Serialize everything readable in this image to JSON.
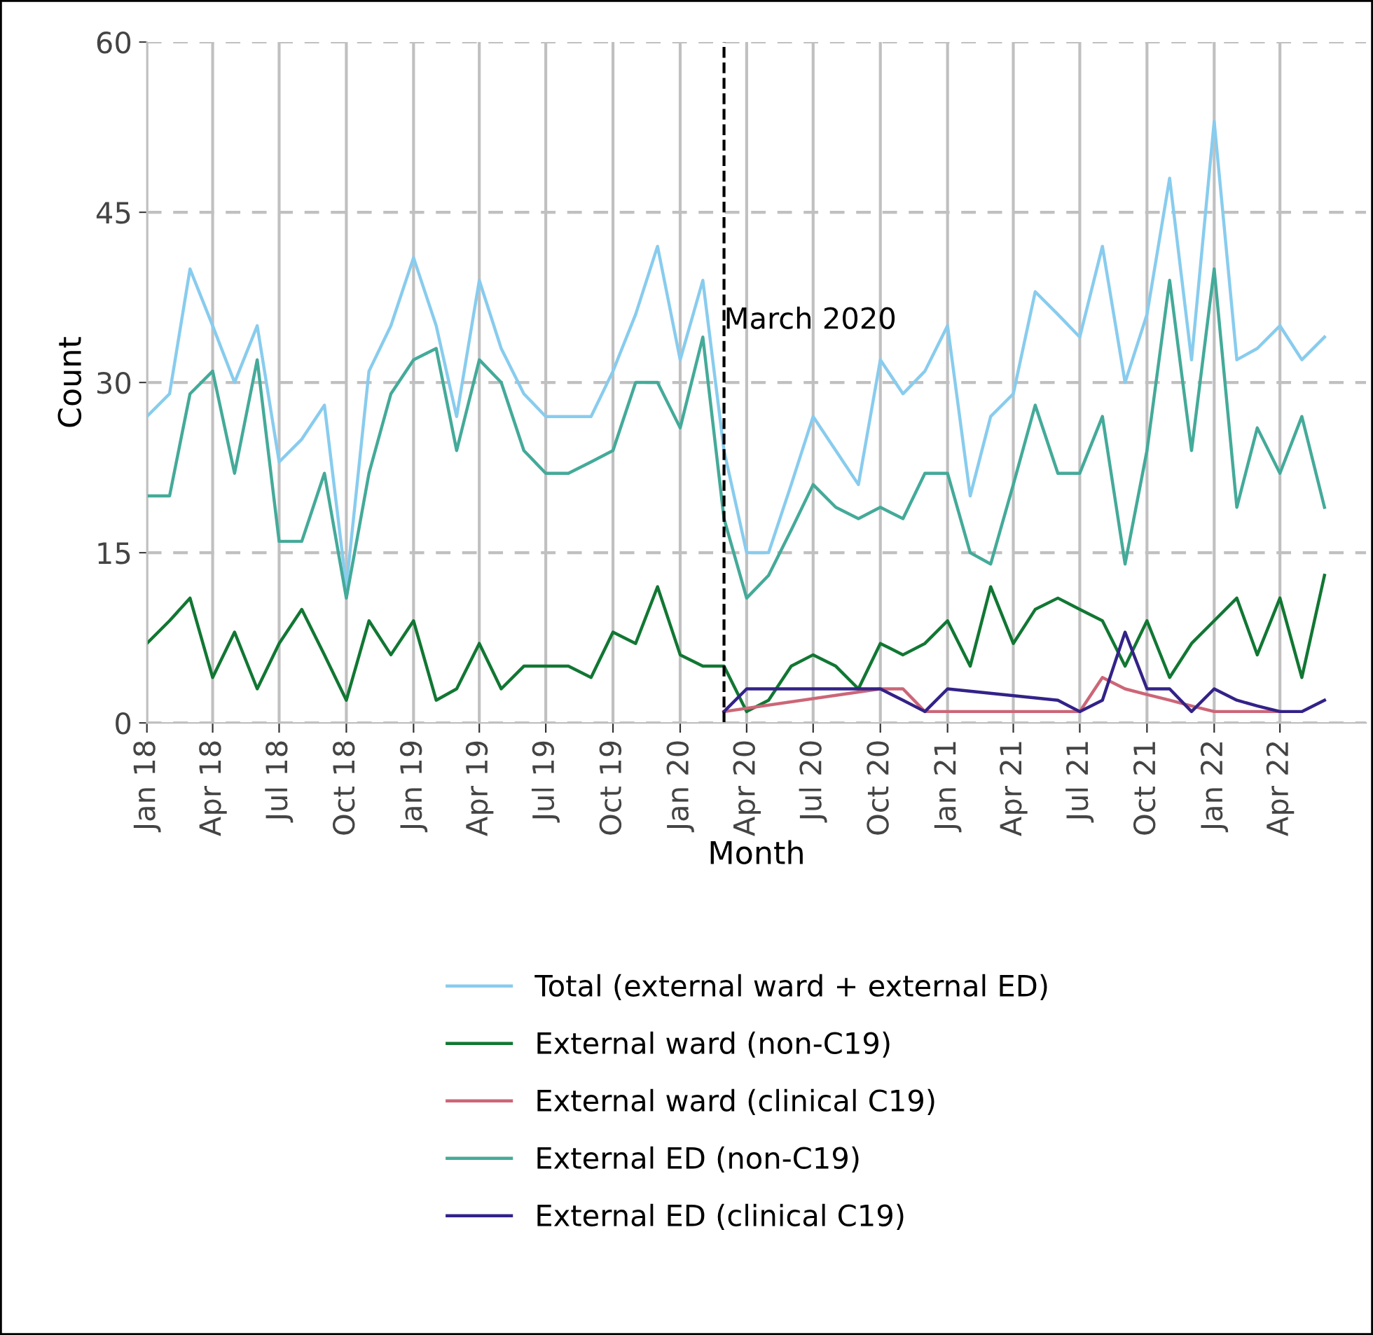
{
  "chart_data": {
    "type": "line",
    "xlabel": "Month",
    "ylabel": "Count",
    "x": [
      "2018-01",
      "2018-02",
      "2018-03",
      "2018-04",
      "2018-05",
      "2018-06",
      "2018-07",
      "2018-08",
      "2018-09",
      "2018-10",
      "2018-11",
      "2018-12",
      "2019-01",
      "2019-02",
      "2019-03",
      "2019-04",
      "2019-05",
      "2019-06",
      "2019-07",
      "2019-08",
      "2019-09",
      "2019-10",
      "2019-11",
      "2019-12",
      "2020-01",
      "2020-02",
      "2020-03",
      "2020-04",
      "2020-05",
      "2020-06",
      "2020-07",
      "2020-08",
      "2020-09",
      "2020-10",
      "2020-11",
      "2020-12",
      "2021-01",
      "2021-02",
      "2021-03",
      "2021-04",
      "2021-05",
      "2021-06",
      "2021-07",
      "2021-08",
      "2021-09",
      "2021-10",
      "2021-11",
      "2021-12",
      "2022-01",
      "2022-02",
      "2022-03",
      "2022-04",
      "2022-05",
      "2022-06"
    ],
    "series": [
      {
        "name": "Total (external ward + external ED)",
        "color": "#88ccee",
        "values": [
          27,
          29,
          40,
          35,
          30,
          35,
          23,
          25,
          28,
          12,
          31,
          35,
          41,
          35,
          27,
          39,
          33,
          29,
          27,
          27,
          27,
          31,
          36,
          42,
          32,
          39,
          24,
          15,
          15,
          21,
          27,
          24,
          21,
          32,
          29,
          31,
          35,
          20,
          27,
          29,
          38,
          36,
          34,
          42,
          30,
          36,
          48,
          32,
          53,
          32,
          33,
          35,
          32,
          34
        ]
      },
      {
        "name": "External ward (non-C19)",
        "color": "#117733",
        "values": [
          7,
          9,
          11,
          4,
          8,
          3,
          7,
          10,
          6,
          2,
          9,
          6,
          9,
          2,
          3,
          7,
          3,
          5,
          5,
          5,
          4,
          8,
          7,
          12,
          6,
          5,
          5,
          1,
          2,
          5,
          6,
          5,
          3,
          7,
          6,
          7,
          9,
          5,
          12,
          7,
          10,
          11,
          10,
          9,
          5,
          9,
          4,
          7,
          9,
          11,
          6,
          11,
          4,
          13
        ]
      },
      {
        "name": "External ward (clinical C19)",
        "color": "#cc6677",
        "x": [
          "2020-03",
          "2020-10",
          "2020-11",
          "2020-12",
          "2021-01",
          "2021-02",
          "2021-03",
          "2021-04",
          "2021-05",
          "2021-06",
          "2021-07",
          "2021-08",
          "2021-09",
          "2021-10",
          "2021-11",
          "2021-12",
          "2022-01",
          "2022-02",
          "2022-03",
          "2022-04"
        ],
        "values": [
          1,
          3,
          3,
          1,
          1,
          1,
          1,
          1,
          1,
          1,
          1,
          4,
          3,
          2.5,
          2,
          1.5,
          1,
          1,
          1,
          1
        ]
      },
      {
        "name": "External ED (non-C19)",
        "color": "#44aa99",
        "values": [
          20,
          20,
          29,
          31,
          22,
          32,
          16,
          16,
          22,
          11,
          22,
          29,
          32,
          33,
          24,
          32,
          30,
          24,
          22,
          22,
          23,
          24,
          30,
          30,
          26,
          34,
          18,
          11,
          13,
          17,
          21,
          19,
          18,
          19,
          18,
          22,
          22,
          15,
          14,
          21,
          28,
          22,
          22,
          27,
          14,
          24,
          39,
          24,
          40,
          19,
          26,
          22,
          27,
          19
        ]
      },
      {
        "name": "External ED (clinical C19)",
        "color": "#332288",
        "x": [
          "2020-03",
          "2020-04",
          "2020-05",
          "2020-06",
          "2020-07",
          "2020-08",
          "2020-09",
          "2020-10",
          "2020-11",
          "2020-12",
          "2021-01",
          "2021-06",
          "2021-07",
          "2021-08",
          "2021-09",
          "2021-10",
          "2021-11",
          "2021-12",
          "2022-01",
          "2022-02",
          "2022-03",
          "2022-04",
          "2022-05",
          "2022-06"
        ],
        "values": [
          1,
          3,
          3,
          3,
          3,
          3,
          3,
          3,
          2,
          1,
          3,
          2,
          1,
          2,
          8,
          3,
          3,
          1,
          3,
          2,
          1.5,
          1,
          1,
          2
        ]
      }
    ],
    "xlim": [
      "2018-01-01",
      "2022-07-28"
    ],
    "xticks": [
      {
        "value": "2018-01",
        "label": "Jan 18"
      },
      {
        "value": "2018-04",
        "label": "Apr 18"
      },
      {
        "value": "2018-07",
        "label": "Jul 18"
      },
      {
        "value": "2018-10",
        "label": "Oct 18"
      },
      {
        "value": "2019-01",
        "label": "Jan 19"
      },
      {
        "value": "2019-04",
        "label": "Apr 19"
      },
      {
        "value": "2019-07",
        "label": "Jul 19"
      },
      {
        "value": "2019-10",
        "label": "Oct 19"
      },
      {
        "value": "2020-01",
        "label": "Jan 20"
      },
      {
        "value": "2020-04",
        "label": "Apr 20"
      },
      {
        "value": "2020-07",
        "label": "Jul 20"
      },
      {
        "value": "2020-10",
        "label": "Oct 20"
      },
      {
        "value": "2021-01",
        "label": "Jan 21"
      },
      {
        "value": "2021-04",
        "label": "Apr 21"
      },
      {
        "value": "2021-07",
        "label": "Jul 21"
      },
      {
        "value": "2021-10",
        "label": "Oct 21"
      },
      {
        "value": "2022-01",
        "label": "Jan 22"
      },
      {
        "value": "2022-04",
        "label": "Apr 22"
      }
    ],
    "ylim": [
      0,
      60
    ],
    "yticks": [
      0,
      15,
      30,
      45,
      60
    ],
    "ref_lines": [
      {
        "axis": "x",
        "value": "2020-03",
        "label": "March 2020",
        "color": "#000000",
        "line_style": "dashed"
      }
    ],
    "grid": true,
    "legend": "bottom",
    "marker": "none",
    "line_style": "solid"
  }
}
